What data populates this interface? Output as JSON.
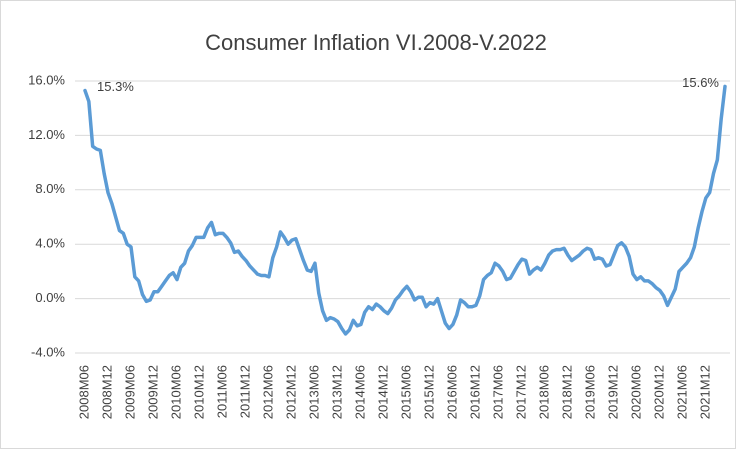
{
  "chart_data": {
    "type": "line",
    "title": "Consumer Inflation VI.2008-V.2022",
    "categories": [
      "2008M06",
      null,
      null,
      null,
      null,
      null,
      "2008M12",
      null,
      null,
      null,
      null,
      null,
      "2009M06",
      null,
      null,
      null,
      null,
      null,
      "2009M12",
      null,
      null,
      null,
      null,
      null,
      "2010M06",
      null,
      null,
      null,
      null,
      null,
      "2010M12",
      null,
      null,
      null,
      null,
      null,
      "2011M06",
      null,
      null,
      null,
      null,
      null,
      "2011M12",
      null,
      null,
      null,
      null,
      null,
      "2012M06",
      null,
      null,
      null,
      null,
      null,
      "2012M12",
      null,
      null,
      null,
      null,
      null,
      "2013M06",
      null,
      null,
      null,
      null,
      null,
      "2013M12",
      null,
      null,
      null,
      null,
      null,
      "2014M06",
      null,
      null,
      null,
      null,
      null,
      "2014M12",
      null,
      null,
      null,
      null,
      null,
      "2015M06",
      null,
      null,
      null,
      null,
      null,
      "2015M12",
      null,
      null,
      null,
      null,
      null,
      "2016M06",
      null,
      null,
      null,
      null,
      null,
      "2016M12",
      null,
      null,
      null,
      null,
      null,
      "2017M06",
      null,
      null,
      null,
      null,
      null,
      "2017M12",
      null,
      null,
      null,
      null,
      null,
      "2018M06",
      null,
      null,
      null,
      null,
      null,
      "2018M12",
      null,
      null,
      null,
      null,
      null,
      "2019M06",
      null,
      null,
      null,
      null,
      null,
      "2019M12",
      null,
      null,
      null,
      null,
      null,
      "2020M06",
      null,
      null,
      null,
      null,
      null,
      "2020M12",
      null,
      null,
      null,
      null,
      null,
      "2021M06",
      null,
      null,
      null,
      null,
      null,
      "2021M12",
      null,
      null,
      null,
      null,
      null
    ],
    "series": [
      {
        "name": "Consumer Inflation",
        "color": "#5b9bd5",
        "values": [
          15.3,
          14.5,
          11.2,
          11.0,
          10.9,
          9.2,
          7.8,
          7.0,
          6.0,
          5.0,
          4.8,
          4.0,
          3.8,
          1.6,
          1.3,
          0.3,
          -0.2,
          -0.1,
          0.5,
          0.5,
          0.9,
          1.3,
          1.7,
          1.9,
          1.4,
          2.3,
          2.6,
          3.5,
          3.9,
          4.5,
          4.5,
          4.5,
          5.2,
          5.6,
          4.7,
          4.8,
          4.8,
          4.5,
          4.1,
          3.4,
          3.5,
          3.1,
          2.8,
          2.4,
          2.1,
          1.8,
          1.7,
          1.7,
          1.6,
          3.0,
          3.8,
          4.9,
          4.5,
          4.0,
          4.3,
          4.4,
          3.6,
          2.8,
          2.1,
          2.0,
          2.6,
          0.4,
          -0.9,
          -1.6,
          -1.4,
          -1.5,
          -1.7,
          -2.2,
          -2.6,
          -2.3,
          -1.6,
          -2.0,
          -1.9,
          -1.0,
          -0.6,
          -0.8,
          -0.4,
          -0.6,
          -0.9,
          -1.1,
          -0.7,
          -0.1,
          0.2,
          0.6,
          0.9,
          0.5,
          -0.1,
          0.1,
          0.1,
          -0.6,
          -0.3,
          -0.4,
          0.0,
          -0.9,
          -1.8,
          -2.2,
          -1.9,
          -1.2,
          -0.1,
          -0.3,
          -0.6,
          -0.6,
          -0.5,
          0.2,
          1.4,
          1.7,
          1.9,
          2.6,
          2.4,
          2.0,
          1.4,
          1.5,
          2.0,
          2.5,
          2.9,
          2.8,
          1.8,
          2.1,
          2.3,
          2.1,
          2.6,
          3.2,
          3.5,
          3.6,
          3.6,
          3.7,
          3.2,
          2.8,
          3.0,
          3.2,
          3.5,
          3.7,
          3.6,
          2.9,
          3.0,
          2.9,
          2.4,
          2.5,
          3.2,
          3.9,
          4.1,
          3.8,
          3.1,
          1.8,
          1.4,
          1.6,
          1.3,
          1.3,
          1.1,
          0.8,
          0.6,
          0.2,
          -0.5,
          0.1,
          0.7,
          2.0,
          2.3,
          2.6,
          3.0,
          3.8,
          5.2,
          6.4,
          7.4,
          7.8,
          9.2,
          10.2,
          13.2,
          15.6
        ],
        "value_labels": {
          "0": "15.3%",
          "167": "15.6%"
        }
      }
    ],
    "ylim": [
      -4,
      16
    ],
    "yticks": [
      {
        "value": -4,
        "label": "-4.0%"
      },
      {
        "value": 0,
        "label": "0.0%"
      },
      {
        "value": 4,
        "label": "4.0%"
      },
      {
        "value": 8,
        "label": "8.0%"
      },
      {
        "value": 12,
        "label": "12.0%"
      },
      {
        "value": 16,
        "label": "16.0%"
      }
    ],
    "grid": true
  }
}
